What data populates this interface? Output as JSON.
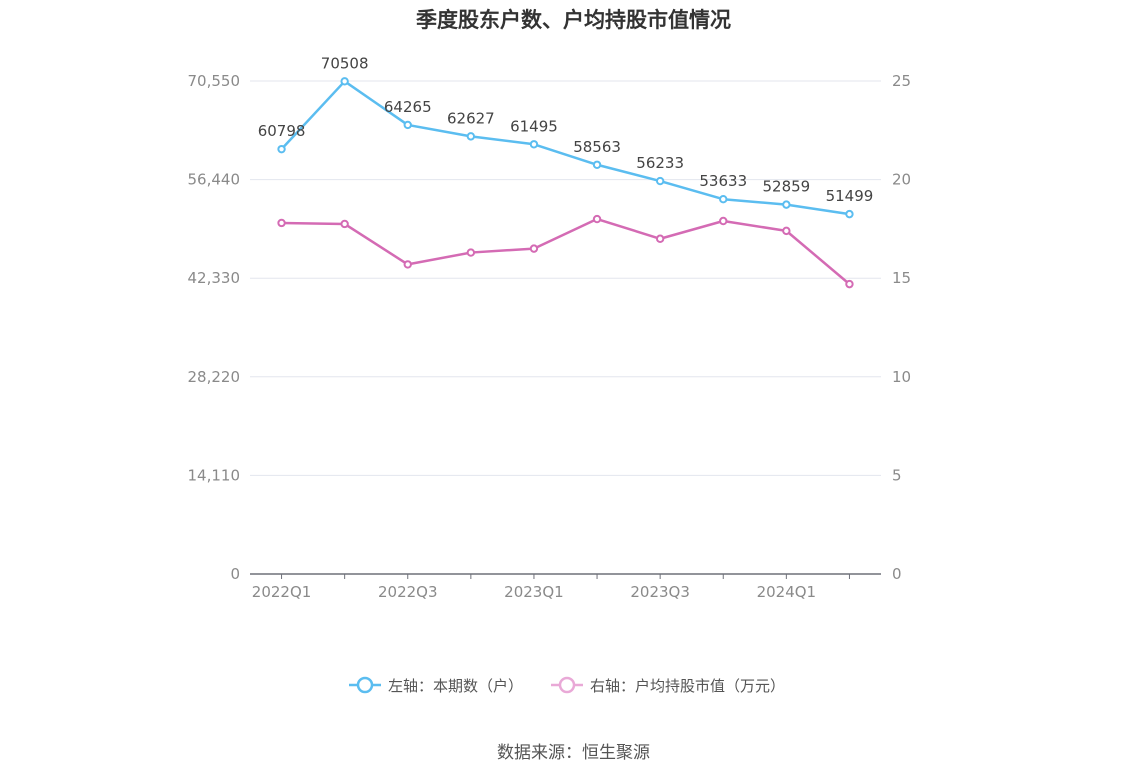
{
  "title": "季度股东户数、户均持股市值情况",
  "source": "数据来源：恒生聚源",
  "colors": {
    "left": "#5BBDF0",
    "right": "#D46BB4",
    "grid": "#e3e6ee",
    "axis": "#6e7079"
  },
  "chart_data": {
    "type": "line",
    "title": "季度股东户数、户均持股市值情况",
    "categories": [
      "2022Q1",
      "2022Q2",
      "2022Q3",
      "2022Q4",
      "2023Q1",
      "2023Q2",
      "2023Q3",
      "2023Q4",
      "2024Q1",
      "2024Q2"
    ],
    "x_tick_labels": [
      "2022Q1",
      "2022Q3",
      "2023Q1",
      "2023Q3",
      "2024Q1"
    ],
    "left_axis": {
      "ticks": [
        "0",
        "14,110",
        "28,220",
        "42,330",
        "56,440",
        "70,550"
      ],
      "ylim": [
        0,
        70550
      ]
    },
    "right_axis": {
      "ticks": [
        "0",
        "5",
        "10",
        "15",
        "20",
        "25"
      ],
      "ylim": [
        0,
        25
      ]
    },
    "grid": true,
    "legend_position": "bottom-center",
    "series": [
      {
        "name": "左轴：本期数（户）",
        "axis": "left",
        "values": [
          60798,
          70508,
          64265,
          62627,
          61495,
          58563,
          56233,
          53633,
          52859,
          51499
        ],
        "labels": [
          "60798",
          "70508",
          "64265",
          "62627",
          "61495",
          "58563",
          "56233",
          "53633",
          "52859",
          "51499"
        ]
      },
      {
        "name": "右轴：户均持股市值（万元）",
        "axis": "right",
        "values": [
          17.8,
          17.75,
          15.7,
          16.3,
          16.5,
          18.0,
          17.0,
          17.9,
          17.4,
          14.7
        ]
      }
    ]
  }
}
